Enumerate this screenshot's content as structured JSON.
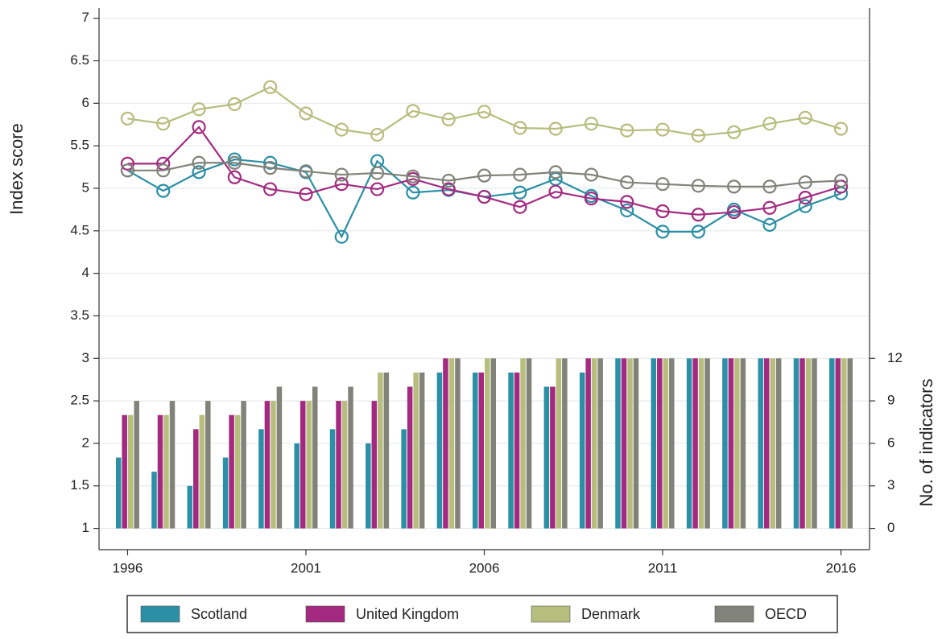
{
  "chart_data": {
    "type": "bar-line",
    "y_label": "Index score",
    "y2_label": "No. of indicators",
    "x": [
      1996,
      1997,
      1998,
      1999,
      2000,
      2001,
      2002,
      2003,
      2004,
      2005,
      2006,
      2007,
      2008,
      2009,
      2010,
      2011,
      2012,
      2013,
      2014,
      2015,
      2016
    ],
    "xlim": [
      1995.2,
      2016.8
    ],
    "xticks": [
      1996,
      2001,
      2006,
      2011,
      2016
    ],
    "ylim": [
      0.75,
      7.12
    ],
    "yticks": [
      1,
      1.5,
      2,
      2.5,
      3,
      3.5,
      4,
      4.5,
      5,
      5.5,
      6,
      6.5,
      7
    ],
    "y2lim": [
      -1.5,
      36.72
    ],
    "y2ticks": [
      0,
      3,
      6,
      9,
      12
    ],
    "grid": true,
    "series": [
      {
        "name": "Scotland",
        "color": "#2b8fa5",
        "values": [
          5.21,
          4.97,
          5.19,
          5.34,
          5.3,
          5.19,
          4.43,
          5.32,
          4.95,
          4.98,
          4.9,
          4.95,
          5.11,
          4.91,
          4.74,
          4.49,
          4.49,
          4.75,
          4.57,
          4.79,
          4.94
        ],
        "indicators": [
          5,
          4,
          3,
          5,
          7,
          6,
          7,
          6,
          7,
          11,
          11,
          11,
          10,
          11,
          12,
          12,
          12,
          12,
          12,
          12,
          12
        ]
      },
      {
        "name": "United Kingdom",
        "color": "#a32a80",
        "values": [
          5.29,
          5.29,
          5.72,
          5.13,
          4.99,
          4.93,
          5.05,
          4.99,
          5.11,
          4.99,
          4.9,
          4.78,
          4.96,
          4.88,
          4.84,
          4.73,
          4.69,
          4.72,
          4.77,
          4.89,
          5.02
        ],
        "indicators": [
          8,
          8,
          7,
          8,
          9,
          9,
          9,
          9,
          10,
          12,
          11,
          11,
          10,
          12,
          12,
          12,
          12,
          12,
          12,
          12,
          12
        ]
      },
      {
        "name": "Denmark",
        "color": "#b7bd7d",
        "values": [
          5.82,
          5.76,
          5.93,
          5.99,
          6.19,
          5.88,
          5.69,
          5.63,
          5.91,
          5.81,
          5.9,
          5.71,
          5.7,
          5.76,
          5.68,
          5.69,
          5.62,
          5.66,
          5.76,
          5.83,
          5.7
        ],
        "indicators": [
          8,
          8,
          8,
          8,
          9,
          9,
          9,
          11,
          11,
          12,
          12,
          12,
          12,
          12,
          12,
          12,
          12,
          12,
          12,
          12,
          12
        ]
      },
      {
        "name": "OECD",
        "color": "#818279",
        "values": [
          5.21,
          5.21,
          5.3,
          5.3,
          5.24,
          5.2,
          5.16,
          5.18,
          5.14,
          5.09,
          5.15,
          5.16,
          5.19,
          5.16,
          5.07,
          5.05,
          5.03,
          5.02,
          5.02,
          5.07,
          5.09
        ],
        "indicators": [
          9,
          9,
          9,
          9,
          10,
          10,
          10,
          11,
          11,
          12,
          12,
          12,
          12,
          12,
          12,
          12,
          12,
          12,
          12,
          12,
          12
        ]
      }
    ]
  }
}
